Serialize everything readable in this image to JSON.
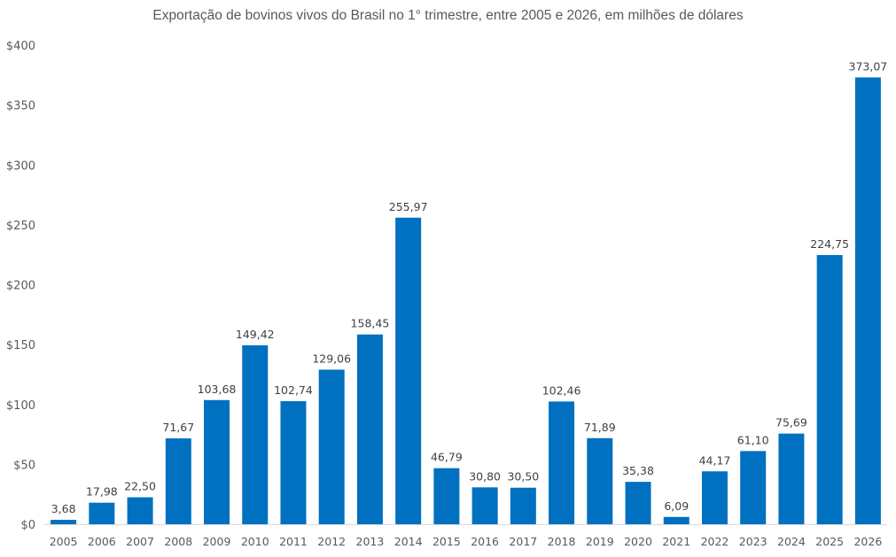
{
  "chart_data": {
    "type": "bar",
    "title": "Exportação de bovinos vivos do Brasil no 1° trimestre, entre 2005 e 2026, em milhões de dólares",
    "xlabel": "",
    "ylabel": "",
    "ylim": [
      0,
      400
    ],
    "yticks": [
      0,
      50,
      100,
      150,
      200,
      250,
      300,
      350,
      400
    ],
    "ytick_labels": [
      "$0",
      "$50",
      "$100",
      "$150",
      "$200",
      "$250",
      "$300",
      "$350",
      "$400"
    ],
    "grid": false,
    "legend": "none",
    "bar_color": "#0070C0",
    "categories": [
      "2005",
      "2006",
      "2007",
      "2008",
      "2009",
      "2010",
      "2011",
      "2012",
      "2013",
      "2014",
      "2015",
      "2016",
      "2017",
      "2018",
      "2019",
      "2020",
      "2021",
      "2022",
      "2023",
      "2024",
      "2025",
      "2026"
    ],
    "values": [
      3.68,
      17.98,
      22.5,
      71.67,
      103.68,
      149.42,
      102.74,
      129.06,
      158.45,
      255.97,
      46.79,
      30.8,
      30.5,
      102.46,
      71.89,
      35.38,
      6.09,
      44.17,
      61.1,
      75.69,
      224.75,
      373.07
    ],
    "data_labels": [
      "3,68",
      "17,98",
      "22,50",
      "71,67",
      "103,68",
      "149,42",
      "102,74",
      "129,06",
      "158,45",
      "255,97",
      "46,79",
      "30,80",
      "30,50",
      "102,46",
      "71,89",
      "35,38",
      "6,09",
      "44,17",
      "61,10",
      "75,69",
      "224,75",
      "373,07"
    ]
  }
}
